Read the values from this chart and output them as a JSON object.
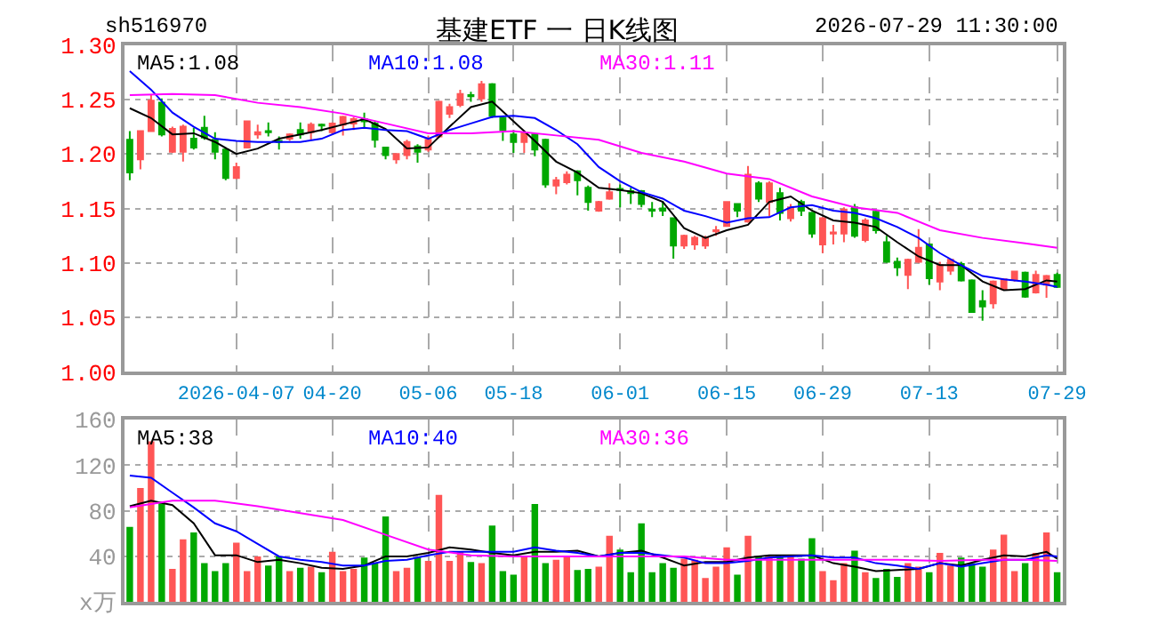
{
  "chart_data": [
    {
      "type": "candlestick",
      "title": "基建ETF 一 日K线图",
      "annotations": [
        "sh516970",
        "2026-07-29 11:30:00"
      ],
      "categories": [
        null,
        null,
        null,
        null,
        null,
        null,
        null,
        null,
        null,
        null,
        "2026-04-07",
        null,
        null,
        null,
        null,
        null,
        null,
        null,
        null,
        "04-20",
        null,
        null,
        null,
        null,
        null,
        null,
        null,
        null,
        "05-06",
        null,
        null,
        null,
        null,
        null,
        null,
        null,
        "05-18",
        null,
        null,
        null,
        null,
        null,
        null,
        null,
        null,
        null,
        "06-01",
        null,
        null,
        null,
        null,
        null,
        null,
        null,
        null,
        null,
        "06-15",
        null,
        null,
        null,
        null,
        null,
        null,
        null,
        null,
        "06-29",
        null,
        null,
        null,
        null,
        null,
        null,
        null,
        null,
        null,
        "07-13",
        null,
        null,
        null,
        null,
        null,
        null,
        null,
        null,
        null,
        null,
        null,
        "07-29"
      ],
      "ohlc": [
        [
          1.213,
          1.221,
          1.176,
          1.183
        ],
        [
          1.195,
          1.221,
          1.186,
          1.221
        ],
        [
          1.221,
          1.254,
          1.221,
          1.249
        ],
        [
          1.247,
          1.251,
          1.216,
          1.218
        ],
        [
          1.202,
          1.225,
          1.201,
          1.223
        ],
        [
          1.202,
          1.227,
          1.193,
          1.225
        ],
        [
          1.214,
          1.224,
          1.204,
          1.206
        ],
        [
          1.224,
          1.235,
          1.213,
          1.215
        ],
        [
          1.213,
          1.22,
          1.195,
          1.202
        ],
        [
          1.204,
          1.206,
          1.176,
          1.178
        ],
        [
          1.178,
          1.192,
          1.177,
          1.188
        ],
        [
          1.206,
          1.23,
          1.205,
          1.23
        ],
        [
          1.218,
          1.227,
          1.214,
          1.22
        ],
        [
          1.221,
          1.229,
          1.216,
          1.22
        ],
        [
          1.212,
          1.216,
          1.204,
          1.211
        ],
        [
          1.214,
          1.219,
          1.212,
          1.218
        ],
        [
          1.222,
          1.229,
          1.214,
          1.218
        ],
        [
          1.22,
          1.229,
          1.213,
          1.227
        ],
        [
          1.227,
          1.228,
          1.221,
          1.226
        ],
        [
          1.22,
          1.229,
          1.218,
          1.228
        ],
        [
          1.227,
          1.235,
          1.217,
          1.234
        ],
        [
          1.228,
          1.234,
          1.222,
          1.232
        ],
        [
          1.232,
          1.238,
          1.223,
          1.23
        ],
        [
          1.228,
          1.23,
          1.206,
          1.213
        ],
        [
          1.206,
          1.206,
          1.195,
          1.199
        ],
        [
          1.195,
          1.2,
          1.191,
          1.2
        ],
        [
          1.199,
          1.213,
          1.195,
          1.211
        ],
        [
          1.207,
          1.209,
          1.192,
          1.202
        ],
        [
          1.204,
          1.217,
          1.202,
          1.213
        ],
        [
          1.216,
          1.249,
          1.216,
          1.248
        ],
        [
          1.237,
          1.246,
          1.233,
          1.243
        ],
        [
          1.245,
          1.259,
          1.243,
          1.255
        ],
        [
          1.254,
          1.257,
          1.248,
          1.253
        ],
        [
          1.251,
          1.267,
          1.248,
          1.264
        ],
        [
          1.264,
          1.265,
          1.233,
          1.235
        ],
        [
          1.233,
          1.235,
          1.212,
          1.222
        ],
        [
          1.218,
          1.222,
          1.201,
          1.211
        ],
        [
          1.211,
          1.221,
          1.201,
          1.219
        ],
        [
          1.218,
          1.219,
          1.198,
          1.204
        ],
        [
          1.213,
          1.214,
          1.169,
          1.172
        ],
        [
          1.171,
          1.179,
          1.163,
          1.176
        ],
        [
          1.174,
          1.184,
          1.172,
          1.181
        ],
        [
          1.184,
          1.185,
          1.162,
          1.176
        ],
        [
          1.169,
          1.171,
          1.148,
          1.156
        ],
        [
          1.148,
          1.157,
          1.147,
          1.156
        ],
        [
          1.159,
          1.173,
          1.158,
          1.165
        ],
        [
          1.168,
          1.172,
          1.151,
          1.167
        ],
        [
          1.166,
          1.169,
          1.154,
          1.164
        ],
        [
          1.166,
          1.167,
          1.151,
          1.154
        ],
        [
          1.149,
          1.156,
          1.142,
          1.148
        ],
        [
          1.15,
          1.157,
          1.143,
          1.148
        ],
        [
          1.141,
          1.141,
          1.104,
          1.116
        ],
        [
          1.116,
          1.126,
          1.113,
          1.125
        ],
        [
          1.117,
          1.125,
          1.112,
          1.123
        ],
        [
          1.116,
          1.125,
          1.113,
          1.123
        ],
        [
          1.129,
          1.134,
          1.125,
          1.13
        ],
        [
          1.134,
          1.156,
          1.133,
          1.156
        ],
        [
          1.154,
          1.155,
          1.142,
          1.148
        ],
        [
          1.138,
          1.189,
          1.137,
          1.181
        ],
        [
          1.173,
          1.175,
          1.156,
          1.159
        ],
        [
          1.156,
          1.175,
          1.143,
          1.173
        ],
        [
          1.164,
          1.169,
          1.139,
          1.146
        ],
        [
          1.141,
          1.154,
          1.138,
          1.151
        ],
        [
          1.156,
          1.158,
          1.143,
          1.148
        ],
        [
          1.146,
          1.147,
          1.123,
          1.127
        ],
        [
          1.117,
          1.142,
          1.109,
          1.141
        ],
        [
          1.127,
          1.135,
          1.117,
          1.128
        ],
        [
          1.127,
          1.151,
          1.119,
          1.149
        ],
        [
          1.151,
          1.154,
          1.123,
          1.125
        ],
        [
          1.121,
          1.141,
          1.119,
          1.139
        ],
        [
          1.147,
          1.148,
          1.127,
          1.13
        ],
        [
          1.119,
          1.125,
          1.1,
          1.101
        ],
        [
          1.101,
          1.105,
          1.088,
          1.096
        ],
        [
          1.089,
          1.104,
          1.076,
          1.103
        ],
        [
          1.101,
          1.131,
          1.1,
          1.114
        ],
        [
          1.117,
          1.118,
          1.08,
          1.086
        ],
        [
          1.083,
          1.101,
          1.075,
          1.098
        ],
        [
          1.093,
          1.104,
          1.089,
          1.103
        ],
        [
          1.099,
          1.101,
          1.083,
          1.084
        ],
        [
          1.084,
          1.085,
          1.055,
          1.055
        ],
        [
          1.065,
          1.075,
          1.047,
          1.06
        ],
        [
          1.063,
          1.084,
          1.058,
          1.083
        ],
        [
          1.076,
          1.086,
          1.075,
          1.085
        ],
        [
          1.085,
          1.093,
          1.083,
          1.092
        ],
        [
          1.091,
          1.092,
          1.068,
          1.069
        ],
        [
          1.073,
          1.093,
          1.072,
          1.089
        ],
        [
          1.08,
          1.089,
          1.068,
          1.088
        ],
        [
          1.089,
          1.091,
          1.077,
          1.078
        ]
      ],
      "colors": [
        "#00a800",
        "#ff5555",
        "#ff5555",
        "#00a800",
        "#ff5555",
        "#ff5555",
        "#00a800",
        "#00a800",
        "#00a800",
        "#00a800",
        "#ff5555",
        "#ff5555",
        "#ff5555",
        "#00a800",
        "#00a800",
        "#ff5555",
        "#00a800",
        "#ff5555",
        "#00a800",
        "#ff5555",
        "#ff5555",
        "#ff5555",
        "#00a800",
        "#00a800",
        "#00a800",
        "#ff5555",
        "#ff5555",
        "#00a800",
        "#ff5555",
        "#ff5555",
        "#ff5555",
        "#ff5555",
        "#00a800",
        "#ff5555",
        "#00a800",
        "#00a800",
        "#00a800",
        "#ff5555",
        "#00a800",
        "#00a800",
        "#ff5555",
        "#ff5555",
        "#00a800",
        "#00a800",
        "#ff5555",
        "#ff5555",
        "#00a800",
        "#00a800",
        "#00a800",
        "#00a800",
        "#00a800",
        "#00a800",
        "#ff5555",
        "#ff5555",
        "#ff5555",
        "#ff5555",
        "#ff5555",
        "#00a800",
        "#ff5555",
        "#00a800",
        "#ff5555",
        "#00a800",
        "#ff5555",
        "#00a800",
        "#00a800",
        "#ff5555",
        "#ff5555",
        "#ff5555",
        "#00a800",
        "#ff5555",
        "#00a800",
        "#00a800",
        "#00a800",
        "#ff5555",
        "#ff5555",
        "#00a800",
        "#ff5555",
        "#ff5555",
        "#00a800",
        "#00a800",
        "#00a800",
        "#ff5555",
        "#ff5555",
        "#ff5555",
        "#00a800",
        "#ff5555",
        "#ff5555",
        "#00a800"
      ],
      "series": [
        {
          "name": "MA5:1.08",
          "type": "line",
          "color": "#000000",
          "values": [
            1.242,
            null,
            1.233,
            null,
            1.218,
            null,
            1.219,
            null,
            1.211,
            null,
            1.2,
            null,
            1.205,
            null,
            1.214,
            null,
            1.218,
            null,
            1.222,
            null,
            1.227,
            null,
            1.232,
            null,
            1.223,
            null,
            1.205,
            null,
            1.206,
            null,
            1.225,
            null,
            1.243,
            null,
            1.248,
            null,
            1.23,
            null,
            1.212,
            null,
            1.193,
            null,
            1.183,
            null,
            1.169,
            null,
            1.167,
            null,
            1.164,
            null,
            1.156,
            null,
            1.132,
            null,
            1.123,
            null,
            1.13,
            null,
            1.135,
            null,
            1.156,
            null,
            1.161,
            null,
            1.148,
            null,
            1.139,
            null,
            1.137,
            null,
            1.133,
            null,
            1.119,
            null,
            1.106,
            null,
            1.098,
            null,
            1.098,
            null,
            1.083,
            null,
            1.075,
            null,
            1.076,
            null,
            1.084,
            1.083
          ]
        },
        {
          "name": "MA10:1.08",
          "type": "line",
          "color": "#0000ff",
          "values": [
            1.276,
            null,
            1.259,
            null,
            1.238,
            null,
            1.225,
            null,
            1.214,
            null,
            1.212,
            null,
            1.211,
            null,
            1.211,
            null,
            1.211,
            null,
            1.214,
            null,
            1.222,
            null,
            1.224,
            null,
            1.222,
            null,
            1.221,
            null,
            1.214,
            null,
            1.222,
            null,
            1.228,
            null,
            1.234,
            null,
            1.235,
            null,
            1.233,
            null,
            1.222,
            null,
            1.209,
            null,
            1.188,
            null,
            1.175,
            null,
            1.165,
            null,
            1.159,
            null,
            1.148,
            null,
            1.143,
            null,
            1.137,
            null,
            1.141,
            null,
            1.142,
            null,
            1.151,
            null,
            1.153,
            null,
            1.148,
            null,
            1.146,
            null,
            1.141,
            null,
            1.133,
            null,
            1.123,
            null,
            1.109,
            null,
            1.098,
            null,
            1.088,
            null,
            1.085,
            null,
            1.083,
            null,
            1.08,
            1.078
          ]
        },
        {
          "name": "MA30:1.11",
          "type": "line",
          "color": "#ff00ff",
          "values": [
            1.254,
            null,
            null,
            null,
            1.255,
            null,
            null,
            null,
            1.254,
            null,
            null,
            null,
            1.247,
            null,
            null,
            null,
            1.243,
            null,
            null,
            null,
            1.237,
            null,
            null,
            null,
            1.228,
            null,
            null,
            null,
            1.219,
            null,
            null,
            null,
            1.219,
            null,
            null,
            null,
            1.221,
            null,
            null,
            null,
            1.217,
            null,
            null,
            null,
            1.213,
            null,
            null,
            null,
            1.201,
            null,
            null,
            null,
            1.193,
            null,
            null,
            null,
            1.182,
            null,
            null,
            null,
            1.177,
            null,
            null,
            null,
            1.161,
            null,
            null,
            null,
            1.151,
            null,
            null,
            null,
            1.146,
            null,
            null,
            null,
            1.13,
            null,
            null,
            null,
            1.123,
            null,
            null,
            null,
            1.118,
            null,
            null,
            1.114
          ]
        }
      ],
      "ylim": [
        1.0,
        1.3
      ],
      "yticks": [
        {
          "value": 1.0,
          "label": "1.00"
        },
        1.05,
        {
          "value": 1.1,
          "label": "1.10"
        },
        1.15,
        {
          "value": 1.2,
          "label": "1.20"
        },
        1.25,
        {
          "value": 1.3,
          "label": "1.30"
        }
      ],
      "grid": true
    },
    {
      "type": "bar",
      "categories": [
        null,
        null,
        null,
        null,
        null,
        null,
        null,
        null,
        null,
        null,
        null,
        null,
        null,
        null,
        null,
        null,
        null,
        null,
        null,
        null,
        null,
        null,
        null,
        null,
        null,
        null,
        null,
        null,
        null,
        null,
        null,
        null,
        null,
        null,
        null,
        null,
        null,
        null,
        null,
        null,
        null,
        null,
        null,
        null,
        null,
        null,
        null,
        null,
        null,
        null,
        null,
        null,
        null,
        null,
        null,
        null,
        null,
        null,
        null,
        null,
        null,
        null,
        null,
        null,
        null,
        null,
        null,
        null,
        null,
        null,
        null,
        null,
        null,
        null,
        null,
        null,
        null,
        null,
        null,
        null,
        null,
        null,
        null,
        null,
        null,
        null,
        null,
        null
      ],
      "values": [
        66,
        100,
        141,
        88,
        29,
        55,
        61,
        34,
        27,
        34,
        52,
        27,
        40,
        32,
        40,
        27,
        30,
        31,
        26,
        44,
        27,
        29,
        39,
        34,
        75,
        27,
        30,
        39,
        36,
        94,
        36,
        44,
        35,
        34,
        67,
        27,
        24,
        40,
        86,
        34,
        37,
        40,
        28,
        29,
        31,
        58,
        46,
        26,
        69,
        26,
        34,
        30,
        38,
        37,
        21,
        31,
        48,
        24,
        58,
        40,
        40,
        40,
        40,
        38,
        56,
        27,
        19,
        34,
        45,
        26,
        21,
        29,
        22,
        34,
        31,
        26,
        43,
        32,
        39,
        34,
        31,
        46,
        59,
        27,
        34,
        43,
        61,
        26
      ],
      "colors": [
        "#00a800",
        "#ff5555",
        "#ff5555",
        "#00a800",
        "#ff5555",
        "#ff5555",
        "#00a800",
        "#00a800",
        "#00a800",
        "#00a800",
        "#ff5555",
        "#ff5555",
        "#ff5555",
        "#00a800",
        "#00a800",
        "#ff5555",
        "#00a800",
        "#ff5555",
        "#00a800",
        "#ff5555",
        "#ff5555",
        "#ff5555",
        "#00a800",
        "#00a800",
        "#00a800",
        "#ff5555",
        "#ff5555",
        "#00a800",
        "#ff5555",
        "#ff5555",
        "#ff5555",
        "#ff5555",
        "#00a800",
        "#ff5555",
        "#00a800",
        "#00a800",
        "#00a800",
        "#ff5555",
        "#00a800",
        "#00a800",
        "#ff5555",
        "#ff5555",
        "#00a800",
        "#00a800",
        "#ff5555",
        "#ff5555",
        "#00a800",
        "#00a800",
        "#00a800",
        "#00a800",
        "#00a800",
        "#00a800",
        "#ff5555",
        "#ff5555",
        "#ff5555",
        "#ff5555",
        "#ff5555",
        "#00a800",
        "#ff5555",
        "#00a800",
        "#ff5555",
        "#00a800",
        "#ff5555",
        "#00a800",
        "#00a800",
        "#ff5555",
        "#ff5555",
        "#ff5555",
        "#00a800",
        "#ff5555",
        "#00a800",
        "#00a800",
        "#00a800",
        "#ff5555",
        "#ff5555",
        "#00a800",
        "#ff5555",
        "#ff5555",
        "#00a800",
        "#00a800",
        "#00a800",
        "#ff5555",
        "#ff5555",
        "#ff5555",
        "#00a800",
        "#ff5555",
        "#ff5555",
        "#00a800"
      ],
      "series": [
        {
          "name": "MA5:38",
          "type": "line",
          "color": "#000000",
          "values": [
            84,
            null,
            89,
            null,
            85,
            null,
            69,
            null,
            41,
            null,
            41,
            null,
            35,
            null,
            37,
            null,
            34,
            null,
            30,
            null,
            29,
            null,
            32,
            null,
            40,
            null,
            40,
            null,
            43,
            null,
            48,
            null,
            46,
            null,
            43,
            null,
            41,
            null,
            44,
            null,
            44,
            null,
            45,
            null,
            40,
            null,
            43,
            null,
            45,
            null,
            39,
            null,
            32,
            null,
            35,
            null,
            35,
            null,
            39,
            null,
            41,
            null,
            41,
            null,
            41,
            null,
            34,
            null,
            31,
            null,
            27,
            null,
            28,
            null,
            29,
            null,
            34,
            null,
            32,
            null,
            37,
            null,
            41,
            null,
            40,
            null,
            44,
            38
          ]
        },
        {
          "name": "MA10:40",
          "type": "line",
          "color": "#0000ff",
          "values": [
            111,
            null,
            109,
            null,
            96,
            null,
            83,
            null,
            69,
            null,
            62,
            null,
            51,
            null,
            40,
            null,
            37,
            null,
            35,
            null,
            32,
            null,
            32,
            null,
            36,
            null,
            37,
            null,
            41,
            null,
            44,
            null,
            44,
            null,
            44,
            null,
            44,
            null,
            48,
            null,
            45,
            null,
            43,
            null,
            40,
            null,
            43,
            null,
            43,
            null,
            41,
            null,
            39,
            null,
            34,
            null,
            34,
            null,
            36,
            null,
            39,
            null,
            40,
            null,
            41,
            null,
            39,
            null,
            39,
            null,
            34,
            null,
            32,
            null,
            29,
            null,
            34,
            null,
            31,
            null,
            34,
            null,
            37,
            null,
            37,
            null,
            41,
            40
          ]
        },
        {
          "name": "MA30:36",
          "type": "line",
          "color": "#ff00ff",
          "values": [
            83,
            null,
            null,
            null,
            89,
            null,
            null,
            null,
            89,
            null,
            null,
            null,
            84,
            null,
            null,
            null,
            78,
            null,
            null,
            null,
            72,
            null,
            null,
            null,
            59,
            null,
            null,
            null,
            46,
            null,
            null,
            null,
            41,
            null,
            null,
            null,
            40,
            null,
            null,
            null,
            40,
            null,
            null,
            null,
            40,
            null,
            null,
            null,
            40,
            null,
            null,
            null,
            40,
            null,
            null,
            null,
            37,
            null,
            null,
            null,
            37,
            null,
            null,
            null,
            37,
            null,
            null,
            null,
            37,
            null,
            null,
            null,
            37,
            null,
            null,
            null,
            36,
            null,
            null,
            null,
            37,
            null,
            null,
            null,
            37,
            null,
            null,
            36
          ]
        }
      ],
      "ylim": [
        0,
        160
      ],
      "yticks": [
        {
          "value": 0,
          "label": "x万"
        },
        40,
        80,
        120,
        160
      ],
      "grid": true,
      "tick_labels": "y"
    }
  ]
}
